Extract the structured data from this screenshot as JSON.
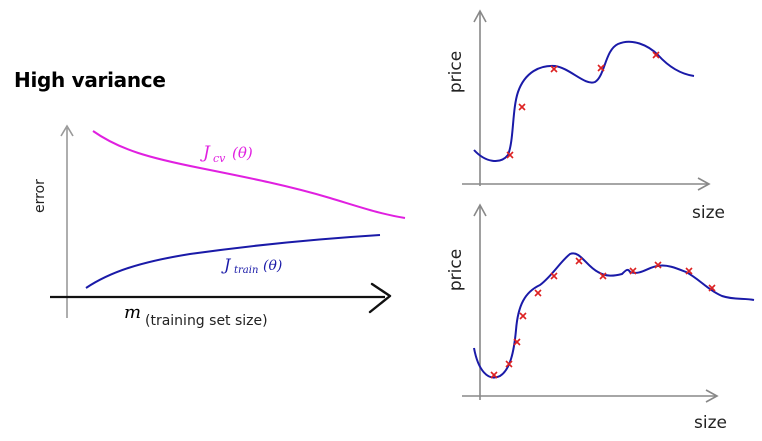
{
  "title": "High variance",
  "left_plot": {
    "y_axis_label": "error",
    "x_axis_var": "m",
    "x_axis_label": "(training set size)",
    "curves": [
      {
        "label": "J_cv(θ)",
        "label_main": "J",
        "label_sub": "cv",
        "label_arg": "(θ)",
        "color": "#e020e0"
      },
      {
        "label": "J_train(θ)",
        "label_main": "J",
        "label_sub": "train",
        "label_arg": "(θ)",
        "color": "#1a1aa8"
      }
    ]
  },
  "top_right_plot": {
    "y_axis_label": "price",
    "x_axis_label": "size",
    "curve_color": "#1a1aa8",
    "marker_color": "#dd2222"
  },
  "bottom_right_plot": {
    "y_axis_label": "price",
    "x_axis_label": "size",
    "curve_color": "#1a1aa8",
    "marker_color": "#dd2222"
  }
}
